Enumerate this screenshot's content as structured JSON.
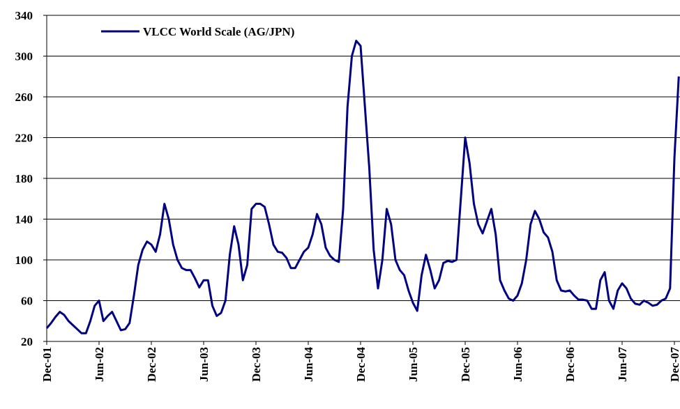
{
  "chart_data": {
    "type": "line",
    "categories": [
      "Dec-01",
      null,
      null,
      null,
      null,
      null,
      null,
      null,
      null,
      null,
      null,
      null,
      "Jun-02",
      null,
      null,
      null,
      null,
      null,
      null,
      null,
      null,
      null,
      null,
      null,
      "Dec-02",
      null,
      null,
      null,
      null,
      null,
      null,
      null,
      null,
      null,
      null,
      null,
      "Jun-03",
      null,
      null,
      null,
      null,
      null,
      null,
      null,
      null,
      null,
      null,
      null,
      "Dec-03",
      null,
      null,
      null,
      null,
      null,
      null,
      null,
      null,
      null,
      null,
      null,
      "Jun-04",
      null,
      null,
      null,
      null,
      null,
      null,
      null,
      null,
      null,
      null,
      null,
      "Dec-04",
      null,
      null,
      null,
      null,
      null,
      null,
      null,
      null,
      null,
      null,
      null,
      "Jun-05",
      null,
      null,
      null,
      null,
      null,
      null,
      null,
      null,
      null,
      null,
      null,
      "Dec-05",
      null,
      null,
      null,
      null,
      null,
      null,
      null,
      null,
      null,
      null,
      null,
      "Jun-06",
      null,
      null,
      null,
      null,
      null,
      null,
      null,
      null,
      null,
      null,
      null,
      "Dec-06",
      null,
      null,
      null,
      null,
      null,
      null,
      null,
      null,
      null,
      null,
      null,
      "Jun-07",
      null,
      null,
      null,
      null,
      null,
      null,
      null,
      null,
      null,
      null,
      null,
      "Dec-07",
      null
    ],
    "series": [
      {
        "name": "VLCC World Scale (AG/JPN)",
        "color": "#000080",
        "values": [
          33,
          38,
          44,
          49,
          46,
          40,
          36,
          32,
          28,
          28,
          40,
          55,
          60,
          40,
          45,
          49,
          40,
          31,
          32,
          38,
          65,
          95,
          110,
          118,
          115,
          108,
          125,
          155,
          140,
          115,
          100,
          92,
          90,
          90,
          82,
          73,
          80,
          80,
          55,
          45,
          48,
          60,
          105,
          133,
          115,
          80,
          95,
          150,
          155,
          155,
          152,
          135,
          115,
          108,
          107,
          102,
          92,
          92,
          100,
          108,
          112,
          125,
          145,
          135,
          112,
          104,
          100,
          98,
          150,
          250,
          300,
          315,
          310,
          250,
          190,
          110,
          72,
          100,
          150,
          135,
          100,
          90,
          85,
          70,
          58,
          50,
          85,
          105,
          90,
          72,
          80,
          97,
          99,
          98,
          100,
          160,
          220,
          195,
          155,
          135,
          126,
          138,
          150,
          125,
          80,
          70,
          62,
          60,
          65,
          77,
          100,
          135,
          148,
          140,
          127,
          122,
          108,
          80,
          70,
          69,
          70,
          65,
          61,
          61,
          60,
          52,
          52,
          80,
          88,
          60,
          52,
          70,
          77,
          72,
          62,
          57,
          56,
          60,
          58,
          55,
          56,
          60,
          62,
          72,
          200,
          280
        ]
      }
    ],
    "ylim": [
      20,
      340
    ],
    "yticks": [
      20,
      60,
      100,
      140,
      180,
      220,
      260,
      300,
      340
    ],
    "grid": true,
    "legend": "top-left"
  }
}
